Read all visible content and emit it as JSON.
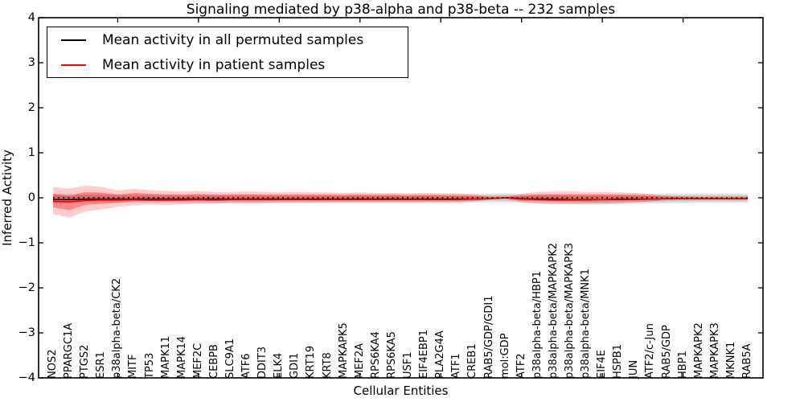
{
  "chart_data": {
    "type": "line",
    "title": "Signaling mediated by p38-alpha and p38-beta -- 232 samples",
    "xlabel": "Cellular Entities",
    "ylabel": "Inferred Activity",
    "ylim": [
      -4,
      4
    ],
    "ytick_values": [
      4,
      3,
      2,
      1,
      0,
      -1,
      -2,
      -3,
      -4
    ],
    "ytick_labels": [
      "4",
      "3",
      "2",
      "1",
      "0",
      "−1",
      "−2",
      "−3",
      "−4"
    ],
    "x_major_tick_every": 5,
    "grid": false,
    "legend_position": "upper left",
    "categories": [
      "NOS2",
      "PPARGC1A",
      "PTGS2",
      "ESR1",
      "p38alpha-beta/CK2",
      "MITF",
      "TP53",
      "MAPK11",
      "MAPK14",
      "MEF2C",
      "CEBPB",
      "SLC9A1",
      "ATF6",
      "DDIT3",
      "ELK4",
      "GDI1",
      "KRT19",
      "KRT8",
      "MAPKAPK5",
      "MEF2A",
      "RPS6KA4",
      "RPS6KA5",
      "USF1",
      "EIF4EBP1",
      "PLA2G4A",
      "ATF1",
      "CREB1",
      "RAB5/GDP/GDI1",
      "mol:GDP",
      "ATF2",
      "p38alpha-beta/HBP1",
      "p38alpha-beta/MAPKAPK2",
      "p38alpha-beta/MAPKAPK3",
      "p38alpha-beta/MNK1",
      "EIF4E",
      "HSPB1",
      "JUN",
      "ATF2/c-Jun",
      "RAB5/GDP",
      "HBP1",
      "MAPKAPK2",
      "MAPKAPK3",
      "MKNK1",
      "RAB5A"
    ],
    "legend_items": [
      {
        "label": "Mean activity in all permuted samples",
        "color": "#000000"
      },
      {
        "label": "Mean activity in patient samples",
        "color": "#ff0000"
      }
    ],
    "zero_line": {
      "y": 0,
      "style": "dotted",
      "color": "#000000"
    },
    "series": [
      {
        "name": "Mean activity in all permuted samples",
        "color": "#000000",
        "values": [
          -0.04,
          -0.04,
          -0.03,
          -0.03,
          -0.03,
          -0.03,
          -0.03,
          -0.03,
          -0.03,
          -0.03,
          -0.03,
          -0.03,
          -0.03,
          -0.03,
          -0.03,
          -0.03,
          -0.03,
          -0.03,
          -0.03,
          -0.03,
          -0.03,
          -0.03,
          -0.03,
          -0.03,
          -0.03,
          -0.03,
          -0.03,
          -0.02,
          0.0,
          -0.02,
          -0.03,
          -0.03,
          -0.04,
          -0.04,
          -0.04,
          -0.03,
          -0.03,
          -0.03,
          -0.02,
          -0.02,
          -0.02,
          -0.02,
          -0.02,
          -0.02
        ]
      },
      {
        "name": "Mean activity in patient samples",
        "color": "#ff0000",
        "values": [
          -0.08,
          -0.09,
          -0.06,
          -0.05,
          -0.05,
          -0.04,
          -0.05,
          -0.05,
          -0.05,
          -0.04,
          -0.05,
          -0.04,
          -0.04,
          -0.04,
          -0.04,
          -0.04,
          -0.04,
          -0.04,
          -0.04,
          -0.04,
          -0.04,
          -0.04,
          -0.04,
          -0.04,
          -0.04,
          -0.04,
          -0.03,
          -0.02,
          0.0,
          -0.03,
          -0.04,
          -0.05,
          -0.05,
          -0.05,
          -0.04,
          -0.04,
          -0.04,
          -0.03,
          -0.02,
          -0.02,
          -0.02,
          -0.02,
          -0.02,
          -0.02
        ]
      }
    ],
    "bands": [
      {
        "name": "permuted-samples-std-band",
        "color": "#888888",
        "opacity": 0.25,
        "inner_scale": 0.6,
        "upper": [
          0.09,
          0.09,
          0.09,
          0.09,
          0.08,
          0.08,
          0.08,
          0.08,
          0.08,
          0.08,
          0.08,
          0.08,
          0.08,
          0.08,
          0.08,
          0.08,
          0.08,
          0.08,
          0.08,
          0.08,
          0.08,
          0.08,
          0.08,
          0.08,
          0.08,
          0.08,
          0.08,
          0.09,
          0.1,
          0.09,
          0.09,
          0.09,
          0.09,
          0.09,
          0.09,
          0.09,
          0.09,
          0.09,
          0.09,
          0.09,
          0.09,
          0.09,
          0.09,
          0.09
        ],
        "lower": [
          -0.12,
          -0.12,
          -0.12,
          -0.11,
          -0.11,
          -0.11,
          -0.11,
          -0.11,
          -0.12,
          -0.12,
          -0.12,
          -0.12,
          -0.12,
          -0.12,
          -0.12,
          -0.12,
          -0.12,
          -0.12,
          -0.12,
          -0.12,
          -0.12,
          -0.12,
          -0.12,
          -0.12,
          -0.12,
          -0.12,
          -0.11,
          -0.1,
          -0.1,
          -0.11,
          -0.12,
          -0.13,
          -0.14,
          -0.15,
          -0.15,
          -0.14,
          -0.13,
          -0.13,
          -0.12,
          -0.12,
          -0.11,
          -0.11,
          -0.11,
          -0.11
        ]
      },
      {
        "name": "patient-samples-std-band",
        "color": "#ff0000",
        "opacity": 0.2,
        "inner_scale": 0.5,
        "upper": [
          0.24,
          0.2,
          0.27,
          0.24,
          0.16,
          0.2,
          0.17,
          0.15,
          0.14,
          0.15,
          0.13,
          0.13,
          0.14,
          0.13,
          0.12,
          0.13,
          0.12,
          0.12,
          0.11,
          0.12,
          0.11,
          0.11,
          0.1,
          0.11,
          0.1,
          0.1,
          0.08,
          0.03,
          0.02,
          0.09,
          0.13,
          0.14,
          0.14,
          0.13,
          0.13,
          0.12,
          0.11,
          0.08,
          0.04,
          0.03,
          0.02,
          0.02,
          0.02,
          0.02
        ],
        "lower": [
          -0.36,
          -0.44,
          -0.3,
          -0.26,
          -0.2,
          -0.17,
          -0.15,
          -0.16,
          -0.14,
          -0.13,
          -0.13,
          -0.12,
          -0.12,
          -0.12,
          -0.11,
          -0.11,
          -0.11,
          -0.1,
          -0.1,
          -0.1,
          -0.1,
          -0.1,
          -0.1,
          -0.1,
          -0.09,
          -0.1,
          -0.08,
          -0.04,
          -0.02,
          -0.1,
          -0.13,
          -0.14,
          -0.14,
          -0.13,
          -0.13,
          -0.12,
          -0.11,
          -0.08,
          -0.05,
          -0.04,
          -0.03,
          -0.03,
          -0.03,
          -0.03
        ]
      }
    ]
  }
}
